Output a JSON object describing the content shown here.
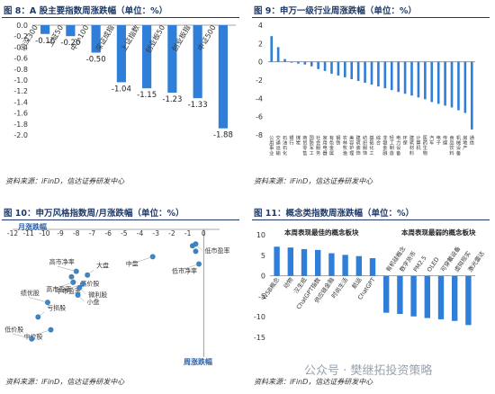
{
  "colors": {
    "bar": "#2f7ed8",
    "dot": "#3b82c4",
    "title": "#1f3a66",
    "grid": "#cfd6de"
  },
  "fig8": {
    "title": "图 8：A 股主要指数周涨跌幅（单位：%）",
    "source": "资料来源：iFinD，信达证券研发中心",
    "chart_data": {
      "type": "bar",
      "ylim": [
        -2.0,
        0.0
      ],
      "categories": [
        "沪深300",
        "上证50",
        "中小100",
        "深证成指",
        "上证指数",
        "创业板50",
        "创业板指",
        "中证500"
      ],
      "values": [
        -0.16,
        -0.2,
        -0.5,
        -1.04,
        -1.15,
        -1.23,
        -1.33,
        -1.88
      ],
      "value_labels": [
        "-0.16",
        "-0.20",
        "-0.50",
        "-1.04",
        "-1.15",
        "-1.23",
        "-1.33",
        "-1.88"
      ],
      "yticks": [
        "0.0",
        "-0.2",
        "-0.4",
        "-0.6",
        "-0.8",
        "-1.0",
        "-1.2",
        "-1.4",
        "-1.6",
        "-1.8",
        "-2.0"
      ]
    }
  },
  "fig9": {
    "title": "图 9：申万一级行业周涨跌幅（单位：%）",
    "source": "资料来源：iFinD，信达证券研发中心",
    "chart_data": {
      "type": "bar",
      "ylim": [
        -8,
        4
      ],
      "categories": [
        "公用事业",
        "交通运输",
        "石油石化",
        "银行",
        "煤炭",
        "商贸零售",
        "国防军工",
        "社会服务",
        "家用电器",
        "有色金属",
        "钢铁",
        "农林牧渔",
        "美容护理",
        "建筑装饰",
        "纺织服饰",
        "基础化工",
        "综合",
        "非银金融",
        "轻工制造",
        "电力设备",
        "环保",
        "建筑材料",
        "计算机",
        "医药生物",
        "汽车",
        "电子",
        "传媒",
        "食品饮料",
        "机械设备",
        "房地产",
        "通信"
      ],
      "values": [
        2.8,
        1.6,
        0.3,
        -0.1,
        -0.2,
        -0.3,
        -0.5,
        -0.8,
        -1.0,
        -1.3,
        -1.5,
        -1.7,
        -1.9,
        -2.1,
        -2.3,
        -2.5,
        -2.7,
        -2.9,
        -3.1,
        -3.3,
        -3.5,
        -3.7,
        -3.9,
        -4.1,
        -4.4,
        -4.6,
        -4.8,
        -5.0,
        -5.3,
        -5.6,
        -7.4
      ],
      "yticks": [
        "4",
        "2",
        "0",
        "-2",
        "-4",
        "-6",
        "-8"
      ]
    }
  },
  "fig10": {
    "title": "图 10：申万风格指数周/月涨跌幅（单位：%）",
    "source": "资料来源：iFinD，信达证券研发中心",
    "x_title": "月涨跌幅",
    "y_title": "周涨跌幅",
    "chart_data": {
      "type": "scatter",
      "xlim": [
        -12,
        1
      ],
      "ylim": [
        -7,
        0
      ],
      "xticks": [
        "-12",
        "-11",
        "-10",
        "-9",
        "-8",
        "-7",
        "-6",
        "-5",
        "-4",
        "-3",
        "-2",
        "-1",
        "0"
      ],
      "points": [
        {
          "label": "高市净率",
          "x": -8.0,
          "y": -2.3
        },
        {
          "label": "高价股",
          "x": -8.3,
          "y": -2.6
        },
        {
          "label": "高市盈率",
          "x": -8.2,
          "y": -2.9
        },
        {
          "label": "大盘",
          "x": -7.3,
          "y": -2.5
        },
        {
          "label": "中市盈率",
          "x": -7.6,
          "y": -3.0
        },
        {
          "label": "微利股",
          "x": -7.8,
          "y": -3.2
        },
        {
          "label": "绩优股",
          "x": -9.8,
          "y": -4.0
        },
        {
          "label": "小盘",
          "x": -7.9,
          "y": -3.6
        },
        {
          "label": "中盘",
          "x": -3.2,
          "y": -1.5
        },
        {
          "label": "亏损股",
          "x": -10.4,
          "y": -4.8
        },
        {
          "label": "中价股",
          "x": -9.6,
          "y": -5.5
        },
        {
          "label": "低市盈率",
          "x": -0.5,
          "y": -0.8
        },
        {
          "label": "低价股",
          "x": -10.8,
          "y": -6.0
        },
        {
          "label": "",
          "x": -0.5,
          "y": -1.2
        },
        {
          "label": "低市净率",
          "x": -0.3,
          "y": -1.9
        },
        {
          "label": "",
          "x": -0.7,
          "y": -0.9
        }
      ]
    }
  },
  "fig11": {
    "title": "图 11：概念类指数周涨跌幅（单位：%）",
    "source": "资料来源：iFinD，信达证券研发中心",
    "left_note": "本周表现最佳的概念板块",
    "right_note": "本周表现最弱的概念板块",
    "watermark": "公众号 · 樊继拓投资策略",
    "chart_data": {
      "type": "bar",
      "ylim": [
        -15,
        10
      ],
      "categories": [
        "WSB概念",
        "动物",
        "汉生纸",
        "ChatGPT指数",
        "供应链金融",
        "时尚生活",
        "航运",
        "ChatGPT",
        "有机硅概念",
        "数字货币",
        "PM2.5",
        "OLED",
        "可穿戴设备",
        "虚拟现实",
        "激光雷达"
      ],
      "values": [
        7.1,
        6.9,
        6.5,
        6.3,
        5.5,
        5.1,
        4.8,
        4.3,
        -9.0,
        -9.3,
        -9.9,
        -10.3,
        -10.6,
        -11.0,
        -12.0
      ],
      "yticks": [
        "10",
        "5",
        "0",
        "-5",
        "-10",
        "-15"
      ]
    }
  }
}
